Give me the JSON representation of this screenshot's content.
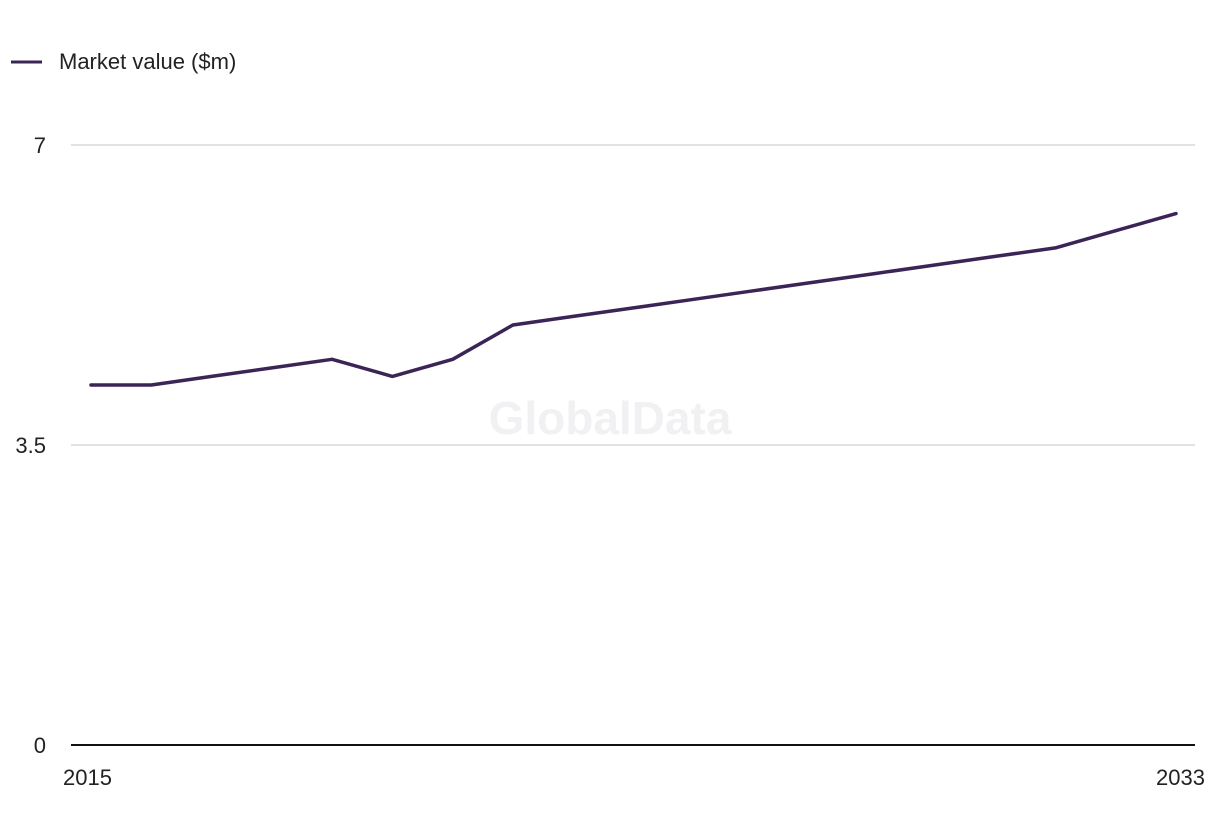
{
  "watermark": "GlobalData",
  "colors": {
    "series": "#3a2556",
    "grid": "#d9d9d9",
    "axis": "#111111"
  },
  "chart_data": {
    "type": "line",
    "title": "",
    "xlabel": "",
    "ylabel": "",
    "x": [
      2015,
      2016,
      2017,
      2018,
      2019,
      2020,
      2021,
      2022,
      2023,
      2024,
      2025,
      2026,
      2027,
      2028,
      2029,
      2030,
      2031,
      2032,
      2033
    ],
    "series": [
      {
        "name": "Market value ($m)",
        "values": [
          4.2,
          4.2,
          4.3,
          4.4,
          4.5,
          4.3,
          4.5,
          4.9,
          5.0,
          5.1,
          5.2,
          5.3,
          5.4,
          5.5,
          5.6,
          5.7,
          5.8,
          6.0,
          6.2
        ]
      }
    ],
    "ylim": [
      0,
      7
    ],
    "yticks": [
      "0",
      "3.5",
      "7"
    ],
    "xticks": [
      "2015",
      "2033"
    ],
    "grid": true,
    "legend": "top-left"
  }
}
